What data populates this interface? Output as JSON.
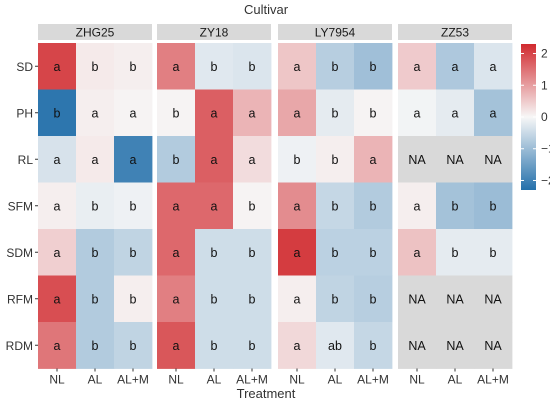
{
  "chart_data": {
    "type": "heatmap",
    "title": "Cultivar",
    "xlabel": "Treatment",
    "ylabel": "",
    "row_labels": [
      "SD",
      "PH",
      "RL",
      "SFM",
      "SDM",
      "RFM",
      "RDM"
    ],
    "column_labels": [
      "NL",
      "AL",
      "AL+M"
    ],
    "na_label": "NA",
    "colorbar": {
      "min": -2.3,
      "max": 2.3,
      "ticks": [
        2,
        1,
        0,
        -1,
        -2
      ],
      "tick_labels": [
        "2",
        "1",
        "0",
        "−1",
        "−2"
      ],
      "colors": {
        "low": "#2470ab",
        "mid": "#f7f7f7",
        "high": "#d12a2f",
        "na": "#d9d9d9"
      }
    },
    "panels": [
      {
        "name": "ZHG25",
        "values": [
          [
            2.0,
            0.15,
            0.1
          ],
          [
            -2.2,
            0.1,
            0.05
          ],
          [
            -0.35,
            0.15,
            -2.0
          ],
          [
            0.1,
            -0.15,
            -0.1
          ],
          [
            0.45,
            -0.75,
            -0.6
          ],
          [
            1.9,
            -0.75,
            0.1
          ],
          [
            1.45,
            -0.75,
            -0.6
          ]
        ],
        "letters": [
          [
            "a",
            "b",
            "b"
          ],
          [
            "b",
            "a",
            "a"
          ],
          [
            "a",
            "a",
            "a"
          ],
          [
            "a",
            "b",
            "b"
          ],
          [
            "a",
            "b",
            "b"
          ],
          [
            "a",
            "b",
            "b"
          ],
          [
            "a",
            "b",
            "b"
          ]
        ]
      },
      {
        "name": "ZY18",
        "values": [
          [
            1.35,
            -0.25,
            -0.3
          ],
          [
            0.05,
            1.7,
            0.75
          ],
          [
            -0.75,
            1.7,
            0.3
          ],
          [
            1.6,
            1.6,
            0.05
          ],
          [
            1.6,
            -0.45,
            -0.45
          ],
          [
            1.35,
            -0.45,
            -0.45
          ],
          [
            1.8,
            -0.45,
            -0.45
          ]
        ],
        "letters": [
          [
            "a",
            "b",
            "b"
          ],
          [
            "b",
            "a",
            "a"
          ],
          [
            "b",
            "a",
            "a"
          ],
          [
            "a",
            "a",
            "b"
          ],
          [
            "a",
            "b",
            "b"
          ],
          [
            "a",
            "b",
            "b"
          ],
          [
            "a",
            "b",
            "b"
          ]
        ]
      },
      {
        "name": "LY7954",
        "values": [
          [
            0.55,
            -0.7,
            -0.95
          ],
          [
            0.9,
            -0.2,
            0.05
          ],
          [
            -0.1,
            0.1,
            0.75
          ],
          [
            1.2,
            -0.55,
            -0.75
          ],
          [
            2.1,
            -0.65,
            -0.65
          ],
          [
            0.1,
            -0.6,
            -0.7
          ],
          [
            0.35,
            -0.25,
            -0.55
          ]
        ],
        "letters": [
          [
            "a",
            "b",
            "b"
          ],
          [
            "a",
            "b",
            "b"
          ],
          [
            "b",
            "b",
            "a"
          ],
          [
            "a",
            "b",
            "b"
          ],
          [
            "a",
            "b",
            "b"
          ],
          [
            "a",
            "b",
            "b"
          ],
          [
            "a",
            "ab",
            "b"
          ]
        ]
      },
      {
        "name": "ZZ53",
        "values": [
          [
            0.5,
            -0.8,
            -0.3
          ],
          [
            -0.05,
            -0.2,
            -0.9
          ],
          [
            null,
            null,
            null
          ],
          [
            0.1,
            -0.9,
            -1.0
          ],
          [
            0.6,
            -0.2,
            -0.2
          ],
          [
            null,
            null,
            null
          ],
          [
            null,
            null,
            null
          ]
        ],
        "letters": [
          [
            "a",
            "a",
            "a"
          ],
          [
            "a",
            "a",
            "a"
          ],
          [
            "NA",
            "NA",
            "NA"
          ],
          [
            "a",
            "b",
            "b"
          ],
          [
            "a",
            "b",
            "b"
          ],
          [
            "NA",
            "NA",
            "NA"
          ],
          [
            "NA",
            "NA",
            "NA"
          ]
        ]
      }
    ]
  }
}
